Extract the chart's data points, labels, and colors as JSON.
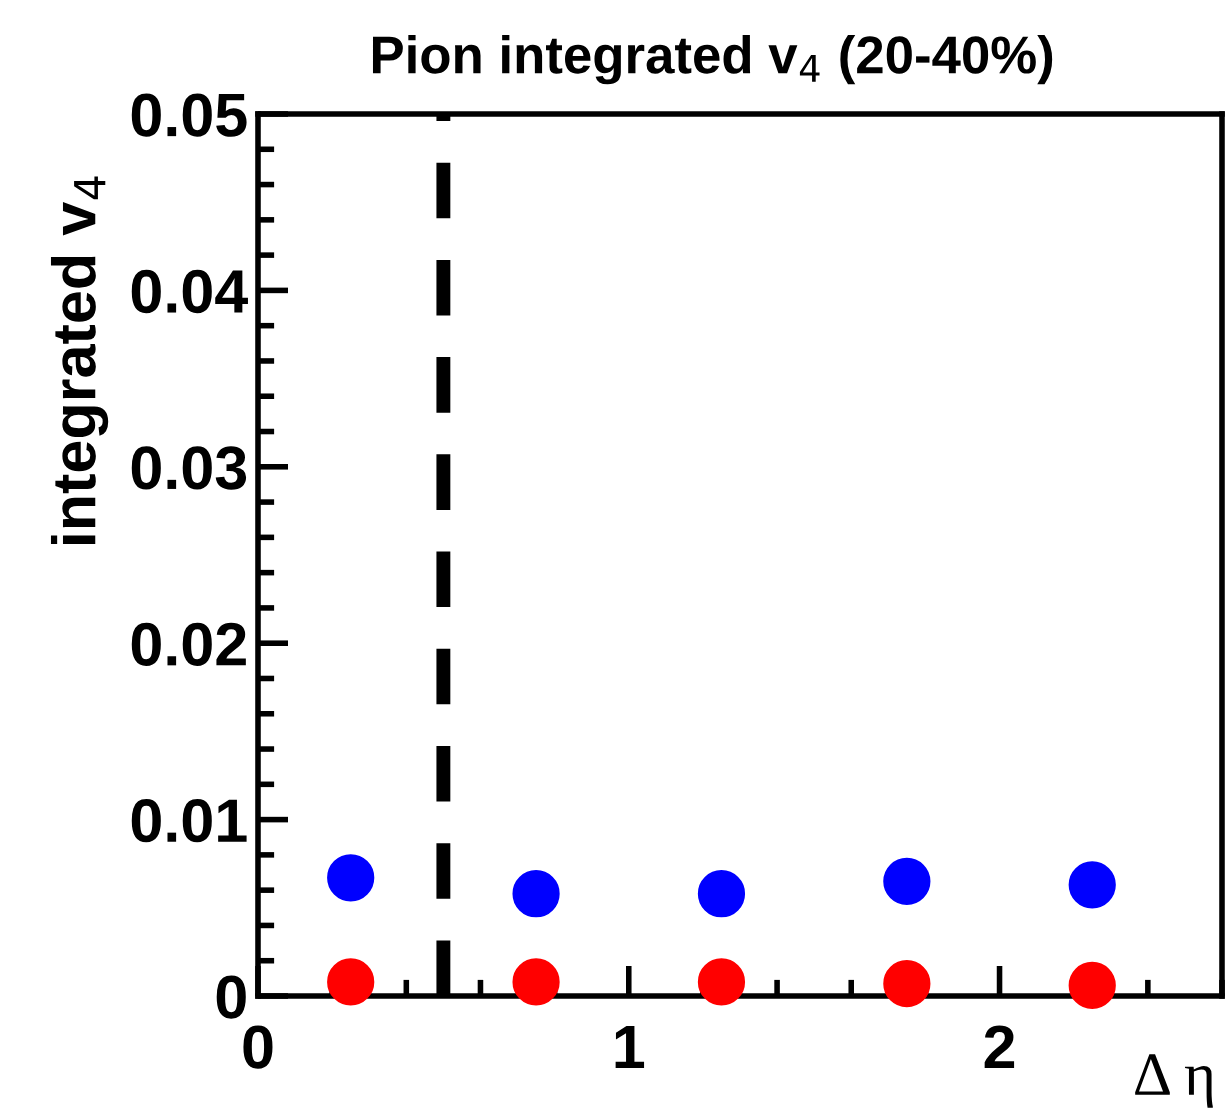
{
  "chart_data": {
    "type": "scatter",
    "title": "Pion integrated v$_{4}$ (20-40%)",
    "xlabel": "Δ η",
    "ylabel": "integrated v$_{4}$",
    "x": [
      0.25,
      0.75,
      1.25,
      1.75,
      2.25
    ],
    "series": [
      {
        "color": "#0000ff",
        "values": [
          0.0067,
          0.0058,
          0.0058,
          0.0065,
          0.0063
        ]
      },
      {
        "color": "#ff0000",
        "values": [
          0.0008,
          0.0008,
          0.0008,
          0.0007,
          0.0006
        ]
      }
    ],
    "marker": "circle",
    "xlim": [
      0,
      2.6
    ],
    "xticks": [
      0,
      1,
      2
    ],
    "ylim": [
      0,
      0.05
    ],
    "yticks": [
      0,
      0.01,
      0.02,
      0.03,
      0.04,
      0.05
    ],
    "ref_lines": [
      {
        "axis": "x",
        "value": 0.5,
        "color": "#000000",
        "line_style": "dashed"
      }
    ],
    "grid": false,
    "legend": false
  }
}
